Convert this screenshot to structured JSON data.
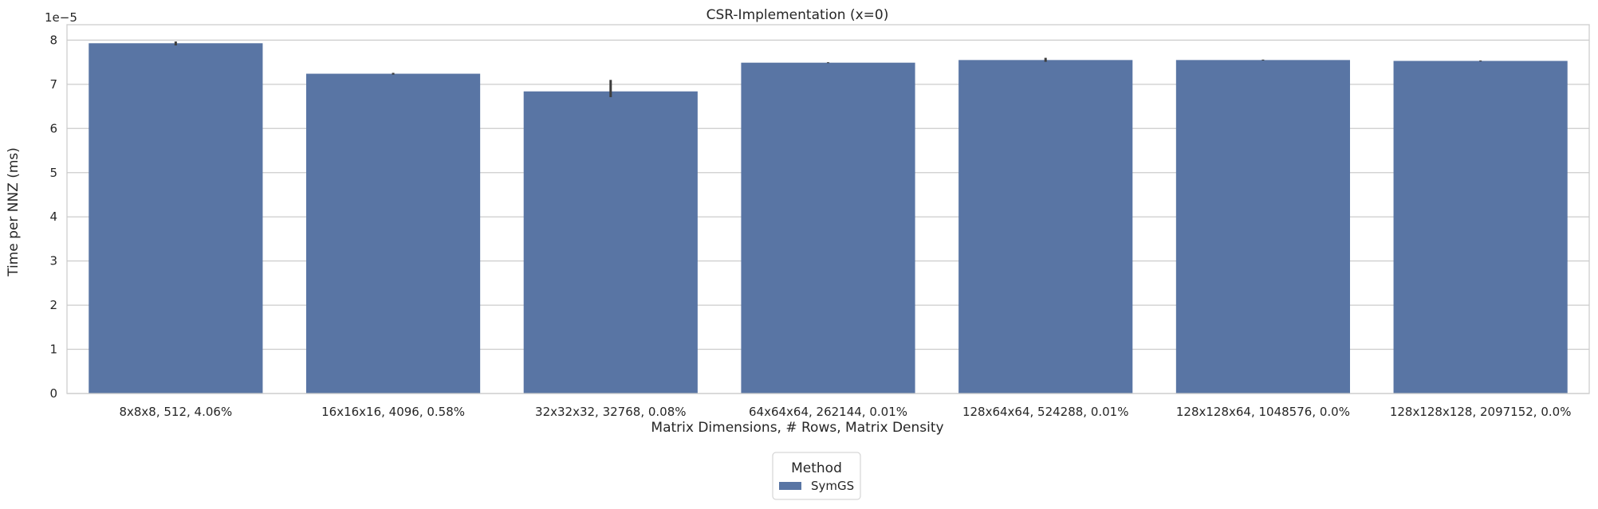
{
  "chart_data": {
    "type": "bar",
    "title": "CSR-Implementation (x=0)",
    "xlabel": "Matrix Dimensions, # Rows, Matrix Density",
    "ylabel": "Time per NNZ (ms)",
    "y_offset_label": "1e−5",
    "y_scale": 1e-05,
    "ylim": [
      0,
      8.35
    ],
    "yticks": [
      "0",
      "1",
      "2",
      "3",
      "4",
      "5",
      "6",
      "7",
      "8"
    ],
    "grid": true,
    "categories": [
      "8x8x8, 512, 4.06%",
      "16x16x16, 4096, 0.58%",
      "32x32x32, 32768, 0.08%",
      "64x64x64, 262144, 0.01%",
      "128x64x64, 524288, 0.01%",
      "128x128x64, 1048576, 0.0%",
      "128x128x128, 2097152, 0.0%"
    ],
    "series": [
      {
        "name": "SymGS",
        "color": "#5975a4",
        "values": [
          7.93,
          7.24,
          6.84,
          7.49,
          7.55,
          7.55,
          7.53
        ],
        "error_low": [
          7.88,
          7.22,
          6.71,
          7.48,
          7.51,
          7.54,
          7.52
        ],
        "error_high": [
          7.97,
          7.26,
          7.1,
          7.5,
          7.6,
          7.56,
          7.54
        ]
      }
    ],
    "legend": {
      "title": "Method",
      "placement": "bottom-center"
    }
  }
}
